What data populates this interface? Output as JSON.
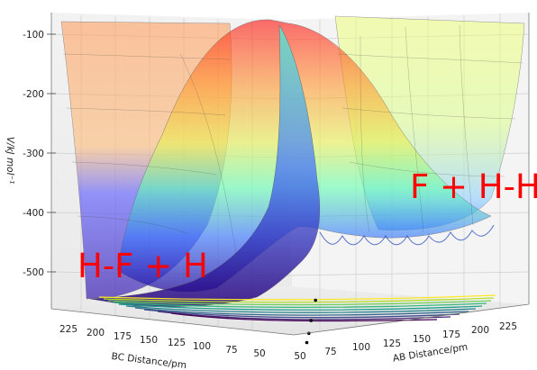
{
  "chart_data": {
    "type": "surface3d",
    "z_axis": {
      "label": "V/kJ mol⁻¹",
      "ticks": [
        -100,
        -200,
        -300,
        -400,
        -500
      ],
      "range": [
        -560,
        -80
      ]
    },
    "x_axis": {
      "label": "AB Distance/pm",
      "ticks": [
        50,
        75,
        100,
        125,
        150,
        175,
        200,
        225
      ],
      "range": [
        50,
        250
      ]
    },
    "y_axis": {
      "label": "BC Distance/pm",
      "ticks": [
        225,
        200,
        175,
        150,
        125,
        100,
        75,
        50
      ],
      "range": [
        50,
        250
      ]
    },
    "annotations": [
      {
        "text": "F + H-H",
        "color": "#ff0000"
      },
      {
        "text": "H-F + H",
        "color": "#ff0000"
      }
    ],
    "trajectory_points": [
      {
        "ab": 118,
        "bc": 98,
        "v": -470
      },
      {
        "ab": 108,
        "bc": 92,
        "v": -500
      },
      {
        "ab": 100,
        "bc": 86,
        "v": -518
      },
      {
        "ab": 92,
        "bc": 80,
        "v": -530
      }
    ],
    "contour_projection": true,
    "colormap": "jet",
    "grid": true
  }
}
